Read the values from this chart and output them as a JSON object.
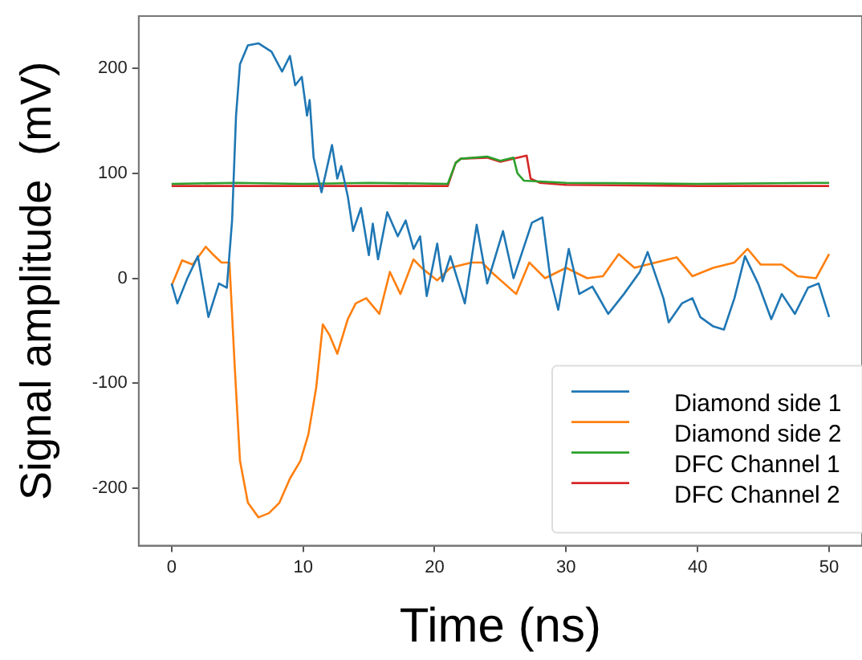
{
  "chart_data": {
    "type": "line",
    "xlabel": "Time (ns)",
    "ylabel": "Signal amplitude  (mV)",
    "xlim": [
      -2.5,
      52.5
    ],
    "ylim": [
      -255,
      250
    ],
    "xticks": [
      0,
      10,
      20,
      30,
      40,
      50
    ],
    "yticks": [
      -200,
      -100,
      0,
      100,
      200
    ],
    "grid": false,
    "legend": "bottom right",
    "marker": "none",
    "line_style": "solid",
    "series": [
      {
        "name": "Diamond side 1",
        "color": "#1f77b4",
        "x": [
          0,
          0.44,
          1.2,
          2.0,
          2.8,
          3.6,
          4.2,
          4.6,
          4.9,
          5.2,
          5.8,
          6.6,
          7.6,
          8.4,
          9.0,
          9.4,
          9.9,
          10.3,
          10.5,
          10.8,
          11.4,
          12.2,
          12.6,
          12.9,
          13.4,
          13.8,
          14.4,
          15.0,
          15.3,
          15.7,
          16.4,
          17.2,
          17.8,
          18.4,
          18.9,
          19.4,
          20.2,
          20.6,
          21.2,
          22.3,
          23.2,
          24.0,
          25.2,
          26.0,
          27.4,
          28.2,
          28.8,
          29.4,
          30.2,
          31.0,
          32.0,
          33.2,
          34.4,
          35.6,
          36.2,
          37.4,
          37.8,
          38.8,
          39.6,
          40.2,
          41.2,
          42.0,
          42.8,
          43.6,
          44.6,
          45.6,
          46.4,
          47.4,
          48.4,
          49.2,
          50
        ],
        "values": [
          -5,
          -24,
          0,
          21,
          -37,
          -5,
          -9,
          55,
          155,
          204,
          222,
          224,
          216,
          197,
          212,
          184,
          192,
          155,
          170,
          115,
          82,
          127,
          95,
          107,
          78,
          45,
          67,
          22,
          52,
          18,
          63,
          40,
          55,
          28,
          40,
          -17,
          33,
          -3,
          21,
          -24,
          51,
          -5,
          45,
          0,
          53,
          58,
          0,
          -30,
          28,
          -15,
          -8,
          -34,
          -15,
          6,
          25,
          -19,
          -42,
          -24,
          -19,
          -37,
          -46,
          -49,
          -19,
          21,
          -5,
          -39,
          -15,
          -34,
          -9,
          -5,
          -37
        ]
      },
      {
        "name": "Diamond side 2",
        "color": "#ff7f0e",
        "x": [
          0,
          0.8,
          1.6,
          2.6,
          3.2,
          3.8,
          4.4,
          4.8,
          5.2,
          5.8,
          6.6,
          7.4,
          8.2,
          9.0,
          9.8,
          10.4,
          11.0,
          11.5,
          12.0,
          12.6,
          13.4,
          14.0,
          14.8,
          15.8,
          16.6,
          17.4,
          18.4,
          19.0,
          20.2,
          21.2,
          22.8,
          23.6,
          24.4,
          26.2,
          27.2,
          28.4,
          30.0,
          31.6,
          32.8,
          34.0,
          35.2,
          36.8,
          38.4,
          39.6,
          41.2,
          42.8,
          43.8,
          44.8,
          46.4,
          47.6,
          49.0,
          50
        ],
        "values": [
          -7,
          17,
          13,
          30,
          22,
          15,
          15,
          -84,
          -174,
          -214,
          -228,
          -224,
          -214,
          -191,
          -174,
          -149,
          -104,
          -44,
          -54,
          -72,
          -39,
          -24,
          -19,
          -34,
          6,
          -15,
          18,
          10,
          -2,
          10,
          15,
          15,
          5,
          -15,
          15,
          0,
          10,
          0,
          2,
          23,
          10,
          15,
          20,
          2,
          10,
          15,
          28,
          13,
          13,
          2,
          0,
          23
        ]
      },
      {
        "name": "DFC Channel 1",
        "color": "#2ca02c",
        "x": [
          0,
          5,
          10,
          15,
          21,
          21.6,
          22,
          24,
          25,
          26,
          26.3,
          26.8,
          30,
          40,
          50
        ],
        "values": [
          90,
          91,
          90,
          91,
          90,
          110,
          114,
          116,
          112,
          115,
          100,
          93,
          91,
          90,
          91
        ]
      },
      {
        "name": "DFC Channel 2",
        "color": "#d62728",
        "x": [
          0,
          21,
          21.6,
          22,
          24,
          25,
          27,
          27.3,
          28,
          30,
          40,
          50
        ],
        "values": [
          88,
          88,
          110,
          114,
          115,
          111,
          117,
          95,
          91,
          89,
          88,
          88
        ]
      }
    ]
  }
}
